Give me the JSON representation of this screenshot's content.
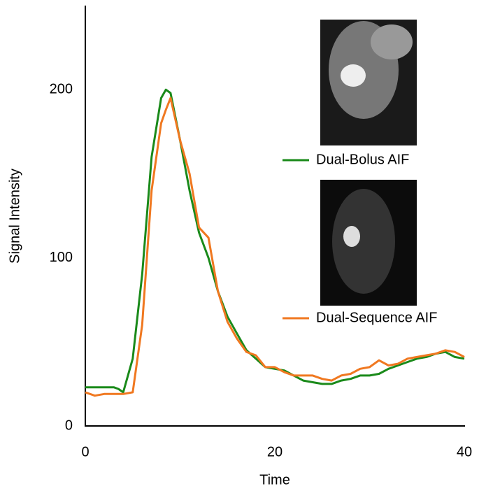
{
  "chart_data": {
    "type": "line",
    "x_label": "Time",
    "y_label": "Signal Intensity",
    "x": [
      0,
      1,
      2,
      3,
      3.5,
      4,
      5,
      6,
      7,
      8,
      8.5,
      9,
      10,
      11,
      12,
      13,
      14,
      15,
      16,
      17,
      18,
      19,
      20,
      21,
      22,
      23,
      24,
      25,
      26,
      27,
      28,
      29,
      30,
      31,
      32,
      33,
      34,
      35,
      36,
      37,
      38,
      39,
      40
    ],
    "series": [
      {
        "name": "Dual-Bolus AIF",
        "color": "#1a8a1a",
        "values": [
          23,
          23,
          23,
          23,
          22,
          20,
          40,
          90,
          160,
          195,
          200,
          198,
          170,
          140,
          115,
          100,
          80,
          65,
          55,
          45,
          40,
          35,
          34,
          33,
          30,
          27,
          26,
          25,
          25,
          27,
          28,
          30,
          30,
          31,
          34,
          36,
          38,
          40,
          41,
          43,
          44,
          41,
          40
        ]
      },
      {
        "name": "Dual-Sequence AIF",
        "color": "#f07820",
        "values": [
          20,
          18,
          19,
          19,
          19,
          19,
          20,
          60,
          140,
          180,
          188,
          195,
          170,
          150,
          118,
          112,
          80,
          62,
          52,
          44,
          42,
          35,
          35,
          32,
          30,
          30,
          30,
          28,
          27,
          30,
          31,
          34,
          35,
          39,
          36,
          37,
          40,
          41,
          42,
          43,
          45,
          44,
          41
        ]
      }
    ],
    "xlim": [
      0,
      40
    ],
    "ylim": [
      0,
      250
    ],
    "xticks": [
      0,
      20,
      40
    ],
    "yticks": [
      0,
      100,
      200
    ],
    "grid": false
  }
}
